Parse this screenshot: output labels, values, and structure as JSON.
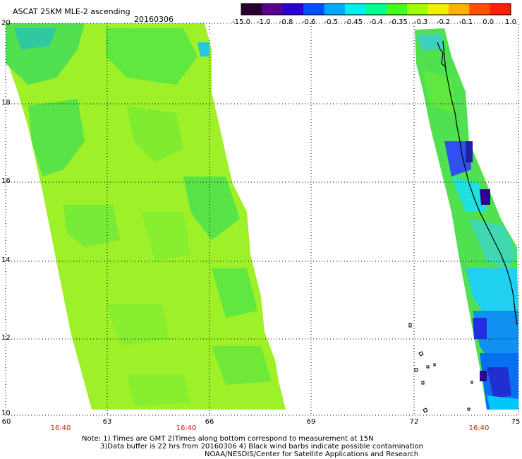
{
  "header": {
    "title": "ASCAT 25KM MLE-2 ascending",
    "date": "20160306"
  },
  "colorbar": {
    "tick_labels": [
      "-15.0",
      "-1.0",
      "-0.8",
      "-0.6",
      "-0.5",
      "-0.45",
      "-0.4",
      "-0.35",
      "-0.3",
      "-0.2",
      "-0.1",
      "0.0",
      "1.0"
    ],
    "colors": [
      "#2a0030",
      "#5a0090",
      "#2a00d0",
      "#0050ff",
      "#00a8ff",
      "#00f0f0",
      "#00ff90",
      "#40ff20",
      "#a0ff00",
      "#f0f000",
      "#ffb000",
      "#ff5000",
      "#ff2000"
    ]
  },
  "map": {
    "lat_labels": [
      "20",
      "18",
      "16",
      "14",
      "12",
      "10"
    ],
    "lon_labels": [
      "60",
      "63",
      "66",
      "69",
      "72",
      "75"
    ],
    "time_labels": [
      "16:40",
      "16:40",
      "16:40"
    ],
    "colors": {
      "background": "#ffffff",
      "swath_main": "#90ee20",
      "swath_green": "#40e040",
      "coast": "#000000",
      "grid": "#000000"
    }
  },
  "notes": {
    "line1": "Note: 1) Times are GMT 2)Times along bottom correspond to measurement at 15N",
    "line2": "3)Data buffer is 22 hrs from 20160306 4) Black wind barbs indicate possible contamination",
    "line3": "NOAA/NESDIS/Center for Satellite Applications and Research"
  }
}
